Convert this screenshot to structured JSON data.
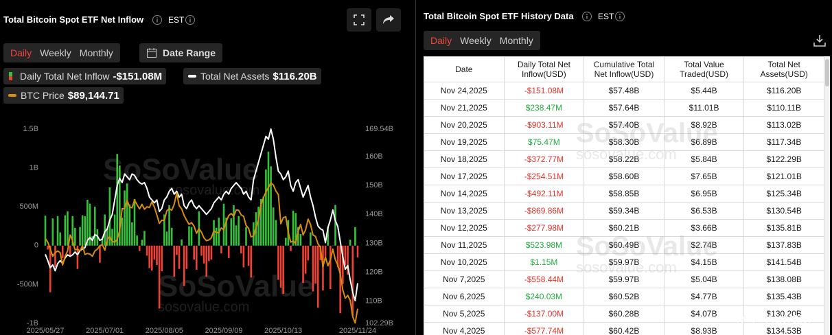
{
  "header": {
    "title": "Total Bitcoin Spot ETF Net Inflow",
    "timezone": "EST",
    "tabs": [
      "Daily",
      "Weekly",
      "Monthly"
    ],
    "active_tab": 0,
    "date_range": "Date Range"
  },
  "watermark": {
    "brand": "SoSoValue",
    "site": "sosovalue.com",
    "user": "@Kuwaity"
  },
  "chart_data": {
    "type": "bar",
    "grid": false,
    "categories": [
      "2025/05/27",
      null,
      null,
      null,
      null,
      null,
      null,
      null,
      null,
      null,
      null,
      null,
      null,
      null,
      null,
      null,
      null,
      null,
      null,
      null,
      null,
      null,
      null,
      null,
      "2025/07/01",
      null,
      null,
      null,
      null,
      null,
      null,
      null,
      null,
      null,
      null,
      null,
      null,
      null,
      null,
      null,
      null,
      null,
      null,
      null,
      null,
      null,
      null,
      null,
      "2025/08/05",
      null,
      null,
      null,
      null,
      null,
      null,
      null,
      null,
      null,
      null,
      null,
      null,
      null,
      null,
      null,
      null,
      null,
      null,
      null,
      null,
      null,
      null,
      null,
      "2025/09/09",
      null,
      null,
      null,
      null,
      null,
      null,
      null,
      null,
      null,
      null,
      null,
      null,
      null,
      null,
      null,
      null,
      null,
      null,
      null,
      null,
      null,
      null,
      null,
      "2025/10/13",
      null,
      null,
      null,
      null,
      null,
      null,
      null,
      null,
      null,
      null,
      null,
      null,
      null,
      null,
      null,
      null,
      null,
      null,
      null,
      null,
      null,
      null,
      null,
      null,
      null,
      null,
      null,
      null,
      null,
      "2025/11/24"
    ],
    "ylim": [
      -1000,
      1500
    ],
    "yticks": [
      {
        "value": 1500,
        "label": "1.5B"
      },
      {
        "value": 1000,
        "label": "1B"
      },
      {
        "value": 500,
        "label": "500M"
      },
      0,
      {
        "value": -500,
        "label": "-500M"
      },
      {
        "value": -1000,
        "label": "-1B"
      }
    ],
    "y2lim": [
      102.29,
      169.54
    ],
    "y2ticks": [
      {
        "value": 169.54,
        "label": "169.54B"
      },
      {
        "value": 160,
        "label": "160B"
      },
      {
        "value": 150,
        "label": "150B"
      },
      {
        "value": 140,
        "label": "140B"
      },
      {
        "value": 130,
        "label": "130B"
      },
      {
        "value": 120,
        "label": "120B"
      },
      {
        "value": 110,
        "label": "110B"
      },
      {
        "value": 102.29,
        "label": "102.29B"
      }
    ],
    "y3lim": [
      85000,
      140000
    ],
    "series": [
      {
        "name": "Daily Total Net Inflow",
        "type": "bar",
        "color": "#35c13a",
        "negative_color": "#ee4236",
        "last_value_label": "-$151.08M",
        "values": [
          385,
          -50,
          -600,
          350,
          -280,
          380,
          170,
          -160,
          390,
          440,
          -130,
          380,
          230,
          -300,
          240,
          390,
          380,
          590,
          540,
          120,
          500,
          210,
          -220,
          100,
          400,
          220,
          750,
          215,
          400,
          1180,
          1030,
          360,
          710,
          800,
          530,
          300,
          600,
          130,
          -70,
          75,
          190,
          -130,
          -290,
          -320,
          -180,
          -250,
          -810,
          -330,
          400,
          180,
          520,
          230,
          -400,
          -120,
          -300,
          80,
          -520,
          -300,
          250,
          240,
          -180,
          -310,
          440,
          -130,
          -230,
          -400,
          -200,
          -180,
          330,
          230,
          360,
          -100,
          540,
          360,
          -160,
          350,
          520,
          260,
          380,
          -100,
          -280,
          240,
          -260,
          -410,
          300,
          430,
          500,
          600,
          630,
          980,
          1210,
          1020,
          490,
          330,
          -440,
          -540,
          -620,
          100,
          330,
          -70,
          450,
          420,
          240,
          150,
          -480,
          -360,
          -190,
          170,
          -590,
          -490,
          -800,
          -186,
          -577.74,
          -137,
          240.03,
          -558.44,
          1.15,
          523.98,
          -277.98,
          -869.86,
          -492.11,
          -254.51,
          -372.77,
          75.47,
          -903.11,
          238.47,
          -151.08
        ]
      },
      {
        "name": "Total Net Assets",
        "type": "line",
        "axis": "y2",
        "color": "#ffffff",
        "last_value_label": "$116.20B",
        "values": [
          126.2,
          124,
          121.5,
          122.5,
          120.5,
          123,
          124,
          123,
          125,
          126,
          125.5,
          126,
          127,
          126,
          127.5,
          128,
          128.5,
          131,
          132,
          131,
          133,
          132.5,
          131,
          131.5,
          134,
          135,
          138,
          140,
          145,
          150,
          152.5,
          151,
          154,
          153,
          152,
          154,
          153.5,
          152,
          151,
          150.5,
          151,
          149,
          146,
          145,
          144,
          145,
          141,
          142,
          145,
          146,
          148,
          149,
          147,
          148,
          146,
          147,
          143,
          142,
          144,
          145,
          143,
          142,
          143,
          142,
          141,
          140,
          141,
          142,
          144,
          145,
          146,
          145,
          147,
          148,
          147,
          149,
          150,
          151,
          150,
          149,
          147,
          148,
          146,
          145,
          152,
          155,
          158,
          161,
          164,
          167,
          166,
          169.54,
          166,
          160,
          155,
          154,
          152,
          153,
          155,
          150,
          148,
          151,
          152,
          149,
          146,
          148,
          150,
          146,
          143,
          139,
          136,
          135,
          134.53,
          130.2,
          135.43,
          138.08,
          141.54,
          137.83,
          135.81,
          130.54,
          125.34,
          121.01,
          122.29,
          117.34,
          113.02,
          110.11,
          116.2
        ]
      },
      {
        "name": "BTC Price",
        "type": "line",
        "axis": "y3",
        "color": "#d98e0b",
        "last_value_label": "$89,144.71",
        "values": [
          109000,
          108000,
          106000,
          104000,
          105000,
          105500,
          105000,
          101500,
          104000,
          105500,
          110000,
          108500,
          105800,
          106000,
          105500,
          107000,
          104500,
          104800,
          104600,
          104000,
          105500,
          106000,
          107000,
          107300,
          105700,
          108800,
          109600,
          108200,
          108000,
          108700,
          111300,
          117500,
          117400,
          119800,
          118000,
          117700,
          119900,
          118600,
          117400,
          118700,
          117300,
          118000,
          117800,
          119400,
          117900,
          115700,
          113300,
          114200,
          114100,
          116800,
          117500,
          117000,
          118700,
          121900,
          118300,
          117400,
          115500,
          114200,
          113000,
          113500,
          112500,
          110500,
          111800,
          110800,
          109200,
          108400,
          108600,
          109200,
          111200,
          110700,
          110700,
          112000,
          111500,
          113900,
          115500,
          116100,
          115300,
          117100,
          117000,
          115700,
          115300,
          112700,
          111900,
          109500,
          109700,
          112100,
          114300,
          118600,
          120600,
          122200,
          123500,
          124700,
          124200,
          122500,
          121500,
          113200,
          114900,
          115200,
          110800,
          108000,
          108300,
          107600,
          111000,
          113000,
          110000,
          111500,
          114500,
          113000,
          110000,
          109600,
          107500,
          106500,
          101000,
          103800,
          101300,
          103000,
          106000,
          103000,
          101500,
          98900,
          94500,
          92100,
          92900,
          91500,
          86900,
          85100,
          89144.71
        ]
      }
    ]
  },
  "table": {
    "title": "Total Bitcoin Spot ETF History Data",
    "timezone": "EST",
    "tabs": [
      "Daily",
      "Weekly",
      "Monthly"
    ],
    "active_tab": 0,
    "columns": [
      "Date",
      "Daily Total Net Inflow(USD)",
      "Cumulative Total Net Inflow(USD)",
      "Total Value Traded(USD)",
      "Total Net Assets(USD)"
    ],
    "rows": [
      [
        "Nov 24,2025",
        "-$151.08M",
        "$57.48B",
        "$5.44B",
        "$116.20B"
      ],
      [
        "Nov 21,2025",
        "$238.47M",
        "$57.64B",
        "$11.01B",
        "$110.11B"
      ],
      [
        "Nov 20,2025",
        "-$903.11M",
        "$57.40B",
        "$8.92B",
        "$113.02B"
      ],
      [
        "Nov 19,2025",
        "$75.47M",
        "$58.30B",
        "$6.89B",
        "$117.34B"
      ],
      [
        "Nov 18,2025",
        "-$372.77M",
        "$58.22B",
        "$5.84B",
        "$122.29B"
      ],
      [
        "Nov 17,2025",
        "-$254.51M",
        "$58.60B",
        "$7.65B",
        "$121.01B"
      ],
      [
        "Nov 14,2025",
        "-$492.11M",
        "$58.85B",
        "$6.95B",
        "$125.34B"
      ],
      [
        "Nov 13,2025",
        "-$869.86M",
        "$59.34B",
        "$6.53B",
        "$130.54B"
      ],
      [
        "Nov 12,2025",
        "-$277.98M",
        "$60.21B",
        "$3.66B",
        "$135.81B"
      ],
      [
        "Nov 11,2025",
        "$523.98M",
        "$60.49B",
        "$2.74B",
        "$137.83B"
      ],
      [
        "Nov 10,2025",
        "$1.15M",
        "$59.97B",
        "$4.15B",
        "$141.54B"
      ],
      [
        "Nov 7,2025",
        "-$558.44M",
        "$59.97B",
        "$5.04B",
        "$138.08B"
      ],
      [
        "Nov 6,2025",
        "$240.03M",
        "$60.52B",
        "$4.77B",
        "$135.43B"
      ],
      [
        "Nov 5,2025",
        "-$137.00M",
        "$60.28B",
        "$4.07B",
        "$130.20B"
      ],
      [
        "Nov 4,2025",
        "-$577.74M",
        "$60.42B",
        "$8.93B",
        "$134.53B"
      ]
    ]
  }
}
